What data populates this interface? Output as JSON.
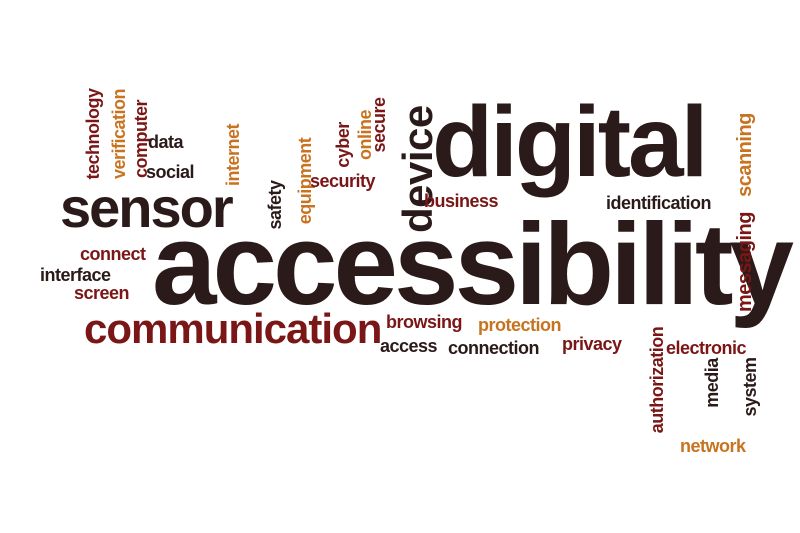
{
  "words": {
    "digital": "digital",
    "accessibility": "accessibility",
    "sensor": "sensor",
    "communication": "communication",
    "device": "device",
    "technology": "technology",
    "verification": "verification",
    "computer": "computer",
    "data": "data",
    "social": "social",
    "internet": "internet",
    "safety": "safety",
    "equipment": "equipment",
    "cyber": "cyber",
    "online": "online",
    "secure": "secure",
    "security": "security",
    "business": "business",
    "identification": "identification",
    "scanning": "scanning",
    "messaging": "messaging",
    "connect": "connect",
    "interface": "interface",
    "screen": "screen",
    "browsing": "browsing",
    "protection": "protection",
    "access": "access",
    "connection": "connection",
    "privacy": "privacy",
    "authorization": "authorization",
    "electronic": "electronic",
    "media": "media",
    "system": "system",
    "network": "network"
  },
  "colors": {
    "dark": "#2b1a1a",
    "red": "#7a1616",
    "orange": "#c77320",
    "background": "#ffffff"
  }
}
